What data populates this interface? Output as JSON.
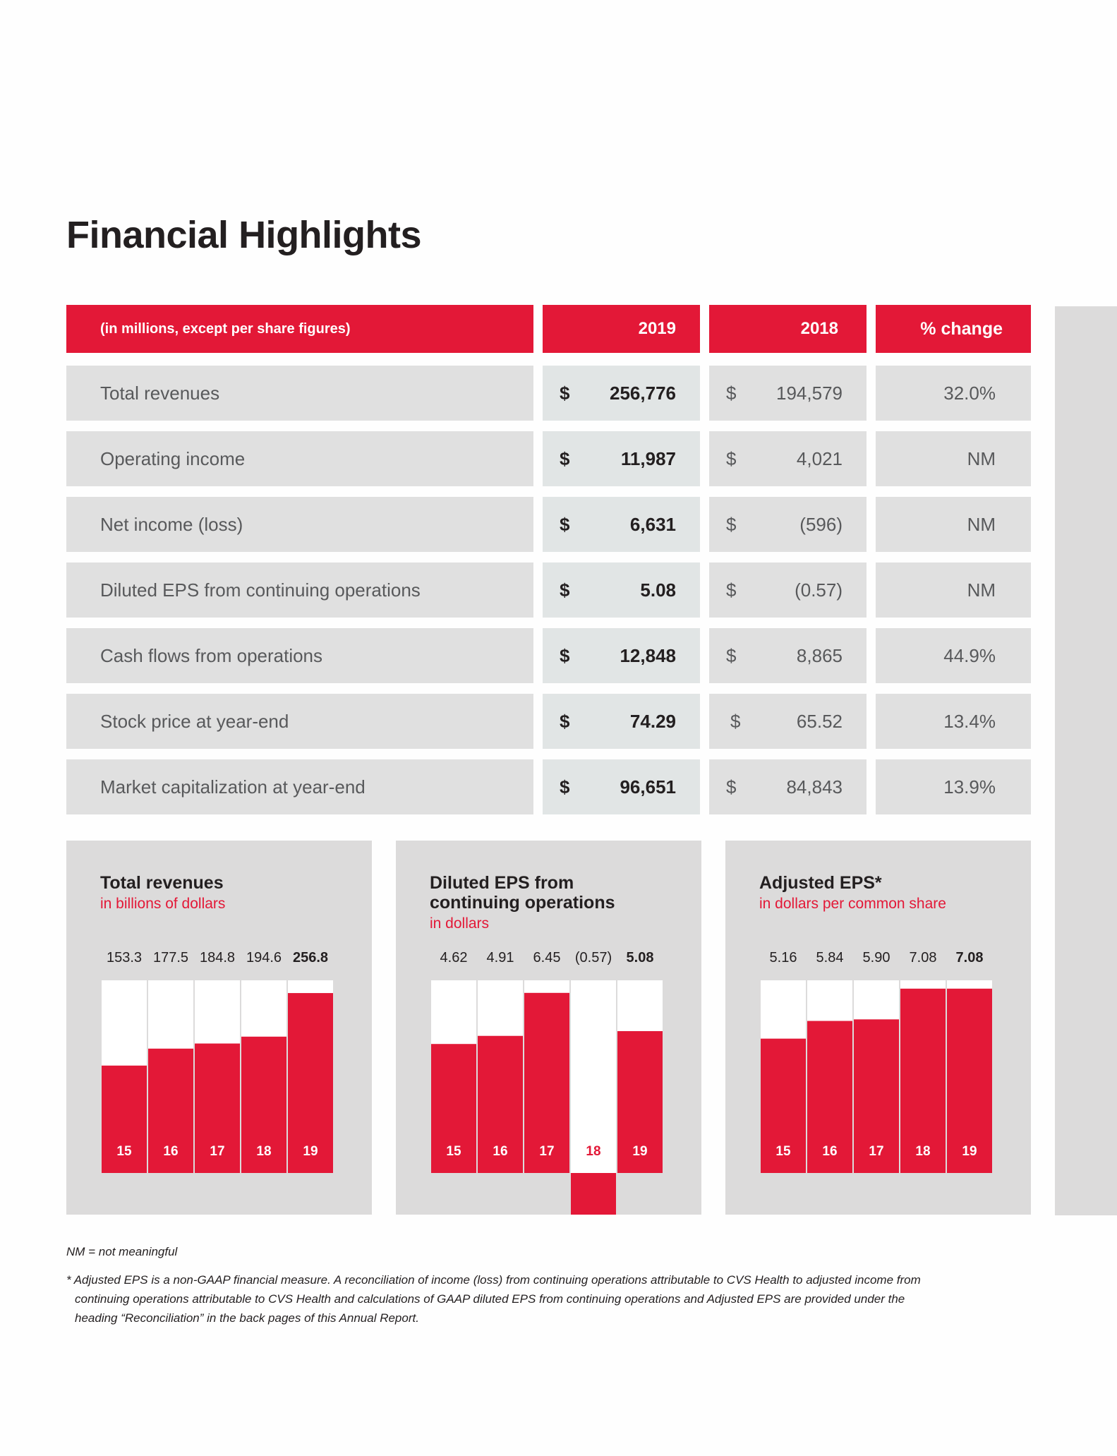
{
  "title": "Financial Highlights",
  "table": {
    "header": {
      "label": "(in millions, except per share figures)",
      "col2019": "2019",
      "col2018": "2018",
      "change": "% change"
    },
    "currency_symbol": "$",
    "rows": [
      {
        "label": "Total revenues",
        "v2019": "256,776",
        "v2018": "194,579",
        "change": "32.0%"
      },
      {
        "label": "Operating income",
        "v2019": "11,987",
        "v2018": "4,021",
        "change": "NM"
      },
      {
        "label": "Net income (loss)",
        "v2019": "6,631",
        "v2018": "(596)",
        "change": "NM"
      },
      {
        "label": "Diluted EPS from continuing operations",
        "v2019": "5.08",
        "v2018": "(0.57)",
        "change": "NM"
      },
      {
        "label": "Cash flows from operations",
        "v2019": "12,848",
        "v2018": "8,865",
        "change": "44.9%"
      },
      {
        "label": "Stock price at year-end",
        "v2019": "74.29",
        "v2018": "65.52",
        "change": "13.4%"
      },
      {
        "label": "Market capitalization at year-end",
        "v2019": "96,651",
        "v2018": "84,843",
        "change": "13.9%"
      }
    ]
  },
  "chart_data": [
    {
      "type": "bar",
      "title": "Total revenues",
      "subtitle": "in billions of dollars",
      "categories": [
        "15",
        "16",
        "17",
        "18",
        "19"
      ],
      "values": [
        153.3,
        177.5,
        184.8,
        194.6,
        256.8
      ],
      "value_labels": [
        "153.3",
        "177.5",
        "184.8",
        "194.6",
        "256.8"
      ],
      "ylim": [
        0,
        275
      ]
    },
    {
      "type": "bar",
      "title": "Diluted EPS from continuing operations",
      "subtitle": "in dollars",
      "categories": [
        "15",
        "16",
        "17",
        "18",
        "19"
      ],
      "values": [
        4.62,
        4.91,
        6.45,
        -0.57,
        5.08
      ],
      "value_labels": [
        "4.62",
        "4.91",
        "6.45",
        "(0.57)",
        "5.08"
      ],
      "ylim": [
        -0.57,
        6.9
      ]
    },
    {
      "type": "bar",
      "title": "Adjusted EPS*",
      "subtitle": "in dollars per common share",
      "categories": [
        "15",
        "16",
        "17",
        "18",
        "19"
      ],
      "values": [
        5.16,
        5.84,
        5.9,
        7.08,
        7.08
      ],
      "value_labels": [
        "5.16",
        "5.84",
        "5.90",
        "7.08",
        "7.08"
      ],
      "ylim": [
        0,
        7.4
      ]
    }
  ],
  "colors": {
    "accent": "#e31837",
    "panel": "#dcdbdb",
    "cell": "#e0e0e0",
    "cell_highlight": "#e1e5e5"
  },
  "footnotes": {
    "nm": "NM = not meaningful",
    "adjusted_line1": "* Adjusted EPS is a non-GAAP financial measure. A reconciliation of income (loss) from continuing operations attributable to CVS Health to adjusted income from",
    "adjusted_line2": "continuing operations attributable to CVS Health and calculations of GAAP diluted EPS from continuing operations and Adjusted EPS are provided under the",
    "adjusted_line3": "heading “Reconciliation” in the back pages of this Annual Report."
  }
}
